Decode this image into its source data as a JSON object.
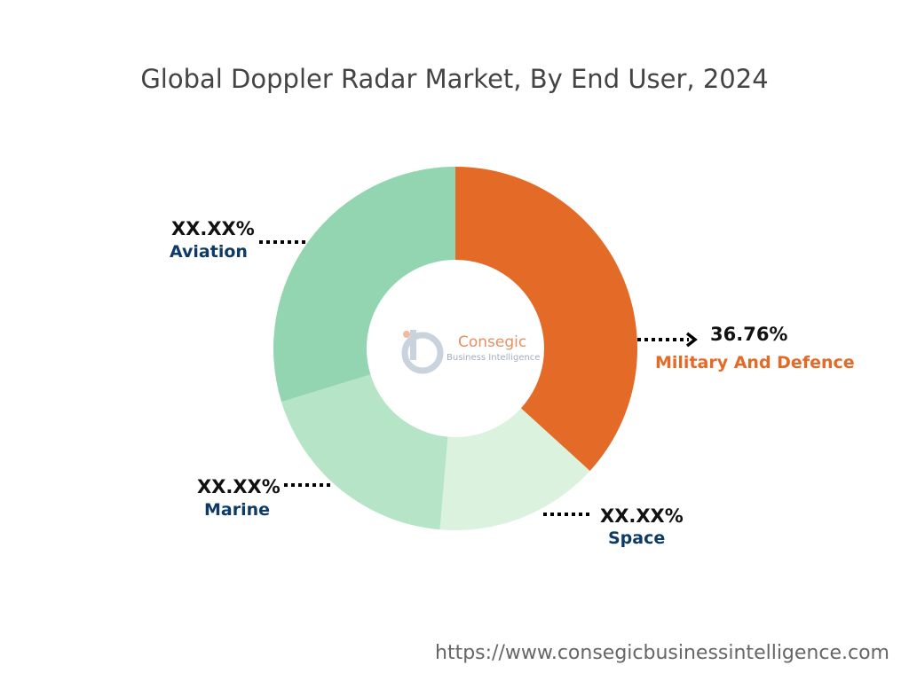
{
  "chart_data": {
    "type": "pie",
    "title": "Global Doppler Radar Market, By End User, 2024",
    "donut": true,
    "categories": [
      "Military And Defence",
      "Space",
      "Marine",
      "Aviation"
    ],
    "values": [
      36.76,
      14.6,
      18.9,
      29.74
    ],
    "value_labels": [
      "36.76%",
      "XX.XX%",
      "XX.XX%",
      "XX.XX%"
    ],
    "colors": [
      "#e46a27",
      "#dbf2de",
      "#b5e5c6",
      "#93d5b0"
    ],
    "label_colors": [
      "#e46a27",
      "#0d3b66",
      "#0d3b66",
      "#0d3b66"
    ]
  },
  "watermark": {
    "name": "Consegic",
    "tagline": "Business Intelligence"
  },
  "source_url": "https://www.consegicbusinessintelligence.com"
}
